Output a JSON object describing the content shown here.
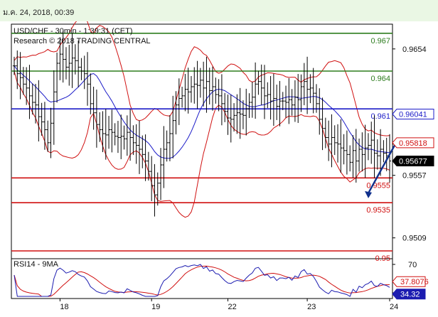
{
  "header": {
    "timestamp": "ม.ค. 24, 2018, 00:39"
  },
  "chart_data": {
    "type": "line",
    "title": "USD/CHF - 30min - 1:39:31 (CET)",
    "subtitle": "Research © 2018 TRADING CENTRAL",
    "x_ticks": [
      {
        "label": "18",
        "bar": 15
      },
      {
        "label": "19",
        "bar": 45
      },
      {
        "label": "22",
        "bar": 70
      },
      {
        "label": "23",
        "bar": 96
      },
      {
        "label": "24",
        "bar": 123
      }
    ],
    "bars": 124,
    "ylim": [
      0.9493,
      0.9673
    ],
    "price_ticks": [
      "0.9654",
      "0.9581",
      "0.9557",
      "0.9509"
    ],
    "levels": [
      {
        "label": "0.967",
        "value": 0.9666,
        "color": "#2e7d1f"
      },
      {
        "label": "0.964",
        "value": 0.9637,
        "color": "#2e7d1f"
      },
      {
        "label": "0.961",
        "value": 0.9608,
        "color": "#1c1cc8"
      },
      {
        "label": "0.9555",
        "value": 0.9555,
        "color": "#d01010"
      },
      {
        "label": "0.9535",
        "value": 0.9536,
        "color": "#d01010"
      },
      {
        "label": "0.95",
        "value": 0.9499,
        "color": "#d01010"
      }
    ],
    "price_badges": [
      {
        "label": "0.96041",
        "value": 0.9604,
        "bg": "#ffffff",
        "fg": "#1c1cc8",
        "border": "#1c1cc8"
      },
      {
        "label": "0.95818",
        "value": 0.9582,
        "bg": "#ffffff",
        "fg": "#d01010",
        "border": "#d01010"
      },
      {
        "label": "0.95677",
        "value": 0.9568,
        "bg": "#000000",
        "fg": "#ffffff",
        "border": "#000000"
      }
    ],
    "close": [
      0.9641,
      0.9635,
      0.9632,
      0.9627,
      0.9624,
      0.9618,
      0.9613,
      0.9611,
      0.9602,
      0.9598,
      0.9592,
      0.9582,
      0.9597,
      0.9621,
      0.9643,
      0.965,
      0.9646,
      0.964,
      0.9643,
      0.9647,
      0.9645,
      0.964,
      0.9637,
      0.9635,
      0.9627,
      0.9612,
      0.9605,
      0.9596,
      0.9592,
      0.9589,
      0.9588,
      0.9592,
      0.959,
      0.9587,
      0.9586,
      0.9587,
      0.9585,
      0.959,
      0.9586,
      0.9582,
      0.958,
      0.9577,
      0.9573,
      0.9568,
      0.956,
      0.9549,
      0.9542,
      0.9551,
      0.9565,
      0.9577,
      0.9582,
      0.9589,
      0.9599,
      0.9611,
      0.9616,
      0.9618,
      0.9623,
      0.9621,
      0.9625,
      0.9627,
      0.9626,
      0.963,
      0.9624,
      0.9629,
      0.9622,
      0.9625,
      0.9619,
      0.9618,
      0.9612,
      0.9606,
      0.9601,
      0.96,
      0.9603,
      0.9605,
      0.9604,
      0.9603,
      0.9608,
      0.9613,
      0.9617,
      0.9627,
      0.9629,
      0.9624,
      0.9618,
      0.9619,
      0.9614,
      0.9616,
      0.961,
      0.9614,
      0.9614,
      0.9613,
      0.9615,
      0.9611,
      0.9617,
      0.9615,
      0.9625,
      0.9629,
      0.9623,
      0.9624,
      0.962,
      0.9612,
      0.96,
      0.9593,
      0.9586,
      0.9581,
      0.9586,
      0.9582,
      0.9581,
      0.9578,
      0.9576,
      0.9573,
      0.9567,
      0.9576,
      0.9568,
      0.9577,
      0.9573,
      0.9578,
      0.958,
      0.9584,
      0.9574,
      0.9572,
      0.9577,
      0.9574,
      0.9572,
      0.9568
    ],
    "forecast": {
      "from_value": 0.9583,
      "to_value": 0.954
    },
    "rsi": {
      "label": "RSI14 - 9MA",
      "levels": [
        "70",
        "30"
      ],
      "badges": [
        {
          "label": "37.8076",
          "value": 37.8,
          "bg": "#ffffff",
          "fg": "#d01010",
          "border": "#d01010"
        },
        {
          "label": "34.32",
          "value": 34.3,
          "bg": "#1c1cb0",
          "fg": "#ffffff",
          "border": "#1c1cb0"
        }
      ]
    }
  }
}
